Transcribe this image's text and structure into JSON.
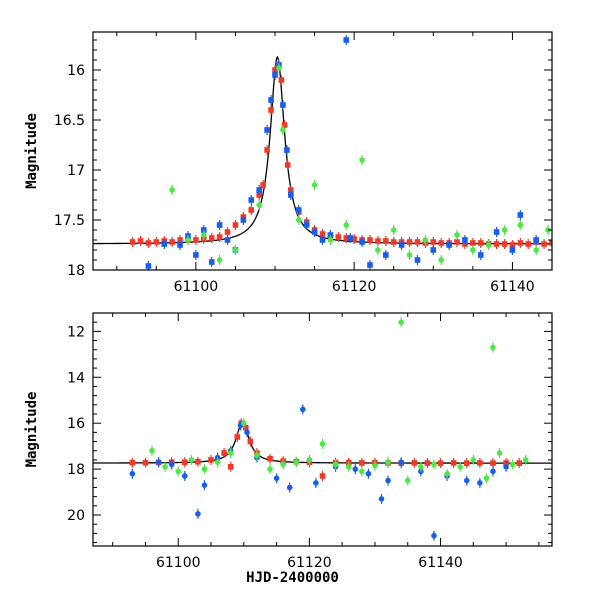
{
  "chart_data": [
    {
      "type": "scatter",
      "panel": "top",
      "title": "",
      "xlabel": "",
      "ylabel": "Magnitude",
      "xlim": [
        61087,
        61145
      ],
      "ylim": [
        18.0,
        15.62
      ],
      "y_inverted": true,
      "xticks": [
        61100,
        61120,
        61140
      ],
      "xtick_labels": [
        "61100",
        "61120",
        "61140"
      ],
      "yticks": [
        16,
        16.5,
        17,
        17.5,
        18
      ],
      "ytick_labels": [
        "16",
        "16.5",
        "17",
        "17.5",
        "18"
      ],
      "model_curve": {
        "baseline": 17.74,
        "peak_x": 61110.3,
        "peak_y": 15.87,
        "width": 1.1
      },
      "series": [
        {
          "name": "red",
          "color": "#ef3a29",
          "marker": "square",
          "points": [
            [
              61092,
              17.72
            ],
            [
              61093,
              17.71
            ],
            [
              61094,
              17.73
            ],
            [
              61095,
              17.72
            ],
            [
              61096,
              17.71
            ],
            [
              61097,
              17.72
            ],
            [
              61098,
              17.7
            ],
            [
              61099,
              17.7
            ],
            [
              61100,
              17.7
            ],
            [
              61101,
              17.69
            ],
            [
              61102,
              17.68
            ],
            [
              61103,
              17.67
            ],
            [
              61104,
              17.62
            ],
            [
              61105,
              17.55
            ],
            [
              61106,
              17.47
            ],
            [
              61107,
              17.4
            ],
            [
              61108,
              17.25
            ],
            [
              61108.5,
              17.15
            ],
            [
              61109,
              16.8
            ],
            [
              61109.5,
              16.4
            ],
            [
              61110,
              16.0
            ],
            [
              61110.4,
              15.95
            ],
            [
              61110.8,
              16.1
            ],
            [
              61111.2,
              16.55
            ],
            [
              61111.6,
              16.95
            ],
            [
              61112,
              17.2
            ],
            [
              61113,
              17.42
            ],
            [
              61114,
              17.52
            ],
            [
              61115,
              17.6
            ],
            [
              61116,
              17.64
            ],
            [
              61117,
              17.66
            ],
            [
              61118,
              17.67
            ],
            [
              61119,
              17.68
            ],
            [
              61120,
              17.69
            ],
            [
              61121,
              17.7
            ],
            [
              61122,
              17.7
            ],
            [
              61123,
              17.71
            ],
            [
              61124,
              17.71
            ],
            [
              61125,
              17.72
            ],
            [
              61126,
              17.72
            ],
            [
              61127,
              17.72
            ],
            [
              61128,
              17.72
            ],
            [
              61129,
              17.73
            ],
            [
              61130,
              17.72
            ],
            [
              61131,
              17.73
            ],
            [
              61132,
              17.73
            ],
            [
              61133,
              17.72
            ],
            [
              61134,
              17.74
            ],
            [
              61135,
              17.73
            ],
            [
              61136,
              17.73
            ],
            [
              61137,
              17.74
            ],
            [
              61138,
              17.74
            ],
            [
              61139,
              17.74
            ],
            [
              61140,
              17.75
            ],
            [
              61141,
              17.73
            ],
            [
              61142,
              17.74
            ],
            [
              61143,
              17.72
            ],
            [
              61144,
              17.74
            ],
            [
              61145,
              17.73
            ]
          ]
        },
        {
          "name": "blue",
          "color": "#1a5de8",
          "marker": "square",
          "points": [
            [
              61094,
              17.96
            ],
            [
              61096,
              17.74
            ],
            [
              61098,
              17.75
            ],
            [
              61099,
              17.66
            ],
            [
              61100,
              17.85
            ],
            [
              61101,
              17.6
            ],
            [
              61102,
              17.92
            ],
            [
              61103,
              17.55
            ],
            [
              61104,
              17.7
            ],
            [
              61105,
              17.8
            ],
            [
              61106,
              17.5
            ],
            [
              61107,
              17.3
            ],
            [
              61108,
              17.2
            ],
            [
              61109,
              16.6
            ],
            [
              61109.5,
              16.3
            ],
            [
              61110,
              16.05
            ],
            [
              61110.5,
              15.95
            ],
            [
              61111,
              16.35
            ],
            [
              61111.5,
              16.8
            ],
            [
              61112,
              17.25
            ],
            [
              61113,
              17.4
            ],
            [
              61114,
              17.55
            ],
            [
              61115,
              17.62
            ],
            [
              61116,
              17.7
            ],
            [
              61117,
              17.65
            ],
            [
              61119,
              15.7
            ],
            [
              61119.5,
              17.68
            ],
            [
              61121,
              17.72
            ],
            [
              61122,
              17.95
            ],
            [
              61124,
              17.85
            ],
            [
              61126,
              17.75
            ],
            [
              61128,
              17.9
            ],
            [
              61130,
              17.8
            ],
            [
              61132,
              17.75
            ],
            [
              61134,
              17.7
            ],
            [
              61136,
              17.85
            ],
            [
              61138,
              17.62
            ],
            [
              61140,
              17.8
            ],
            [
              61141,
              17.45
            ],
            [
              61143,
              17.7
            ]
          ]
        },
        {
          "name": "green",
          "color": "#4fe64a",
          "marker": "circle",
          "points": [
            [
              61097,
              17.2
            ],
            [
              61099,
              17.7
            ],
            [
              61101,
              17.65
            ],
            [
              61103,
              17.9
            ],
            [
              61105,
              17.8
            ],
            [
              61108,
              17.35
            ],
            [
              61110.5,
              15.98
            ],
            [
              61111,
              16.6
            ],
            [
              61113,
              17.5
            ],
            [
              61115,
              17.15
            ],
            [
              61117,
              17.7
            ],
            [
              61119,
              17.55
            ],
            [
              61121,
              16.9
            ],
            [
              61123,
              17.8
            ],
            [
              61125,
              17.6
            ],
            [
              61127,
              17.85
            ],
            [
              61129,
              17.7
            ],
            [
              61131,
              17.9
            ],
            [
              61133,
              17.65
            ],
            [
              61135,
              17.8
            ],
            [
              61137,
              17.75
            ],
            [
              61139,
              17.6
            ],
            [
              61141,
              17.55
            ],
            [
              61143,
              17.8
            ],
            [
              61144.5,
              17.6
            ]
          ]
        }
      ]
    },
    {
      "type": "scatter",
      "panel": "bottom",
      "title": "",
      "xlabel": "HJD-2400000",
      "ylabel": "Magnitude",
      "xlim": [
        61087,
        61157
      ],
      "ylim": [
        21.35,
        11.2
      ],
      "y_inverted": true,
      "xticks": [
        61100,
        61120,
        61140
      ],
      "xtick_labels": [
        "61100",
        "61120",
        "61140"
      ],
      "yticks": [
        12,
        14,
        16,
        18,
        20
      ],
      "ytick_labels": [
        "12",
        "14",
        "16",
        "18",
        "20"
      ],
      "model_curve": {
        "baseline": 17.74,
        "peak_x": 61109.8,
        "peak_y": 15.95,
        "width": 1.2
      },
      "series": [
        {
          "name": "red",
          "color": "#ef3a29",
          "marker": "square",
          "points": [
            [
              61093,
              17.72
            ],
            [
              61095,
              17.72
            ],
            [
              61097,
              17.71
            ],
            [
              61099,
              17.7
            ],
            [
              61101,
              17.7
            ],
            [
              61103,
              17.68
            ],
            [
              61105,
              17.6
            ],
            [
              61107,
              17.3
            ],
            [
              61108,
              17.9
            ],
            [
              61109,
              16.6
            ],
            [
              61109.6,
              16.0
            ],
            [
              61110.3,
              16.2
            ],
            [
              61111,
              16.8
            ],
            [
              61112,
              17.3
            ],
            [
              61114,
              17.55
            ],
            [
              61116,
              17.65
            ],
            [
              61118,
              17.68
            ],
            [
              61120,
              17.7
            ],
            [
              61122,
              18.3
            ],
            [
              61124,
              17.72
            ],
            [
              61126,
              17.72
            ],
            [
              61128,
              17.73
            ],
            [
              61130,
              17.72
            ],
            [
              61132,
              17.73
            ],
            [
              61134,
              17.74
            ],
            [
              61136,
              17.73
            ],
            [
              61138,
              17.74
            ],
            [
              61140,
              17.74
            ],
            [
              61142,
              17.73
            ],
            [
              61144,
              17.74
            ],
            [
              61146,
              17.73
            ],
            [
              61148,
              17.74
            ],
            [
              61150,
              17.73
            ],
            [
              61152,
              17.74
            ]
          ]
        },
        {
          "name": "blue",
          "color": "#1a5de8",
          "marker": "circle",
          "points": [
            [
              61093,
              18.2
            ],
            [
              61097,
              17.7
            ],
            [
              61099,
              17.8
            ],
            [
              61101,
              18.3
            ],
            [
              61103,
              19.95
            ],
            [
              61104,
              18.7
            ],
            [
              61106,
              17.5
            ],
            [
              61108,
              17.2
            ],
            [
              61109.5,
              16.1
            ],
            [
              61110.5,
              16.4
            ],
            [
              61112,
              17.5
            ],
            [
              61115,
              18.4
            ],
            [
              61117,
              18.8
            ],
            [
              61119,
              15.4
            ],
            [
              61121,
              18.6
            ],
            [
              61124,
              17.9
            ],
            [
              61127,
              18.0
            ],
            [
              61129,
              18.2
            ],
            [
              61131,
              19.3
            ],
            [
              61132,
              18.5
            ],
            [
              61134,
              17.7
            ],
            [
              61137,
              18.1
            ],
            [
              61139,
              20.9
            ],
            [
              61141,
              18.3
            ],
            [
              61144,
              18.5
            ],
            [
              61146,
              18.6
            ],
            [
              61148,
              18.1
            ],
            [
              61150,
              17.9
            ]
          ]
        },
        {
          "name": "green",
          "color": "#4fe64a",
          "marker": "circle",
          "points": [
            [
              61096,
              17.2
            ],
            [
              61098,
              17.9
            ],
            [
              61100,
              18.1
            ],
            [
              61102,
              17.6
            ],
            [
              61104,
              18.0
            ],
            [
              61106,
              17.7
            ],
            [
              61108,
              17.3
            ],
            [
              61110,
              16.0
            ],
            [
              61112,
              17.4
            ],
            [
              61114,
              18.0
            ],
            [
              61116,
              17.8
            ],
            [
              61118,
              17.7
            ],
            [
              61120,
              17.6
            ],
            [
              61122,
              16.9
            ],
            [
              61124,
              17.8
            ],
            [
              61126,
              17.9
            ],
            [
              61128,
              18.1
            ],
            [
              61130,
              17.85
            ],
            [
              61132,
              17.7
            ],
            [
              61134,
              11.6
            ],
            [
              61135,
              18.5
            ],
            [
              61137,
              17.9
            ],
            [
              61139,
              17.8
            ],
            [
              61141,
              18.2
            ],
            [
              61143,
              17.9
            ],
            [
              61145,
              17.6
            ],
            [
              61147,
              18.4
            ],
            [
              61148,
              12.7
            ],
            [
              61149,
              17.3
            ],
            [
              61151,
              17.8
            ],
            [
              61153,
              17.6
            ]
          ]
        }
      ]
    }
  ]
}
